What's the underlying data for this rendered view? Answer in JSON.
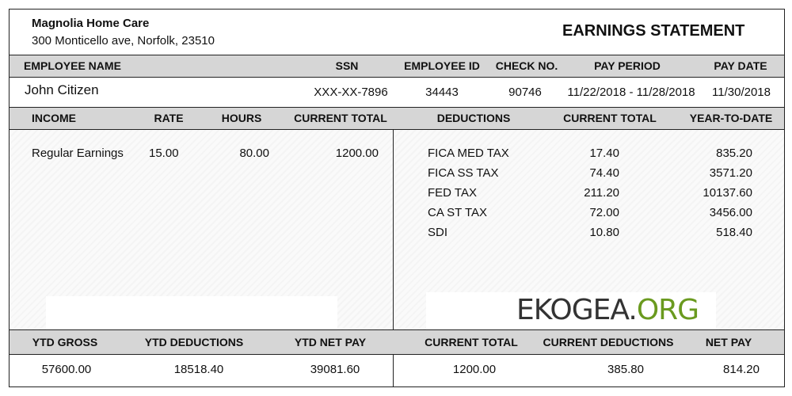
{
  "company": {
    "name": "Magnolia Home Care",
    "address": "300 Monticello ave, Norfolk, 23510"
  },
  "title": "EARNINGS STATEMENT",
  "employee_headers": [
    "EMPLOYEE NAME",
    "SSN",
    "EMPLOYEE ID",
    "CHECK NO.",
    "PAY PERIOD",
    "PAY DATE"
  ],
  "employee": {
    "name": "John Citizen",
    "ssn": "XXX-XX-7896",
    "id": "34443",
    "check_no": "90746",
    "pay_period": "11/22/2018 - 11/28/2018",
    "pay_date": "11/30/2018"
  },
  "income_headers": [
    "INCOME",
    "RATE",
    "HOURS",
    "CURRENT TOTAL"
  ],
  "income": [
    {
      "name": "Regular Earnings",
      "rate": "15.00",
      "hours": "80.00",
      "total": "1200.00"
    }
  ],
  "deduction_headers": [
    "DEDUCTIONS",
    "CURRENT TOTAL",
    "YEAR-TO-DATE"
  ],
  "deductions": [
    {
      "name": "FICA  MED TAX",
      "current": "17.40",
      "ytd": "835.20"
    },
    {
      "name": "FICA  SS TAX",
      "current": "74.40",
      "ytd": "3571.20"
    },
    {
      "name": "FED TAX",
      "current": "211.20",
      "ytd": "10137.60"
    },
    {
      "name": "CA  ST TAX",
      "current": "72.00",
      "ytd": "3456.00"
    },
    {
      "name": "SDI",
      "current": "10.80",
      "ytd": "518.40"
    }
  ],
  "summary_headers": [
    "YTD GROSS",
    "YTD DEDUCTIONS",
    "YTD NET PAY",
    "CURRENT TOTAL",
    "CURRENT DEDUCTIONS",
    "NET PAY"
  ],
  "summary": {
    "ytd_gross": "57600.00",
    "ytd_deductions": "18518.40",
    "ytd_net_pay": "39081.60",
    "current_total": "1200.00",
    "current_deductions": "385.80",
    "net_pay": "814.20"
  },
  "watermark": {
    "part1": "EKOGEA.",
    "part2": "ORG",
    "color1": "#333333",
    "color2": "#6a9a1f"
  }
}
